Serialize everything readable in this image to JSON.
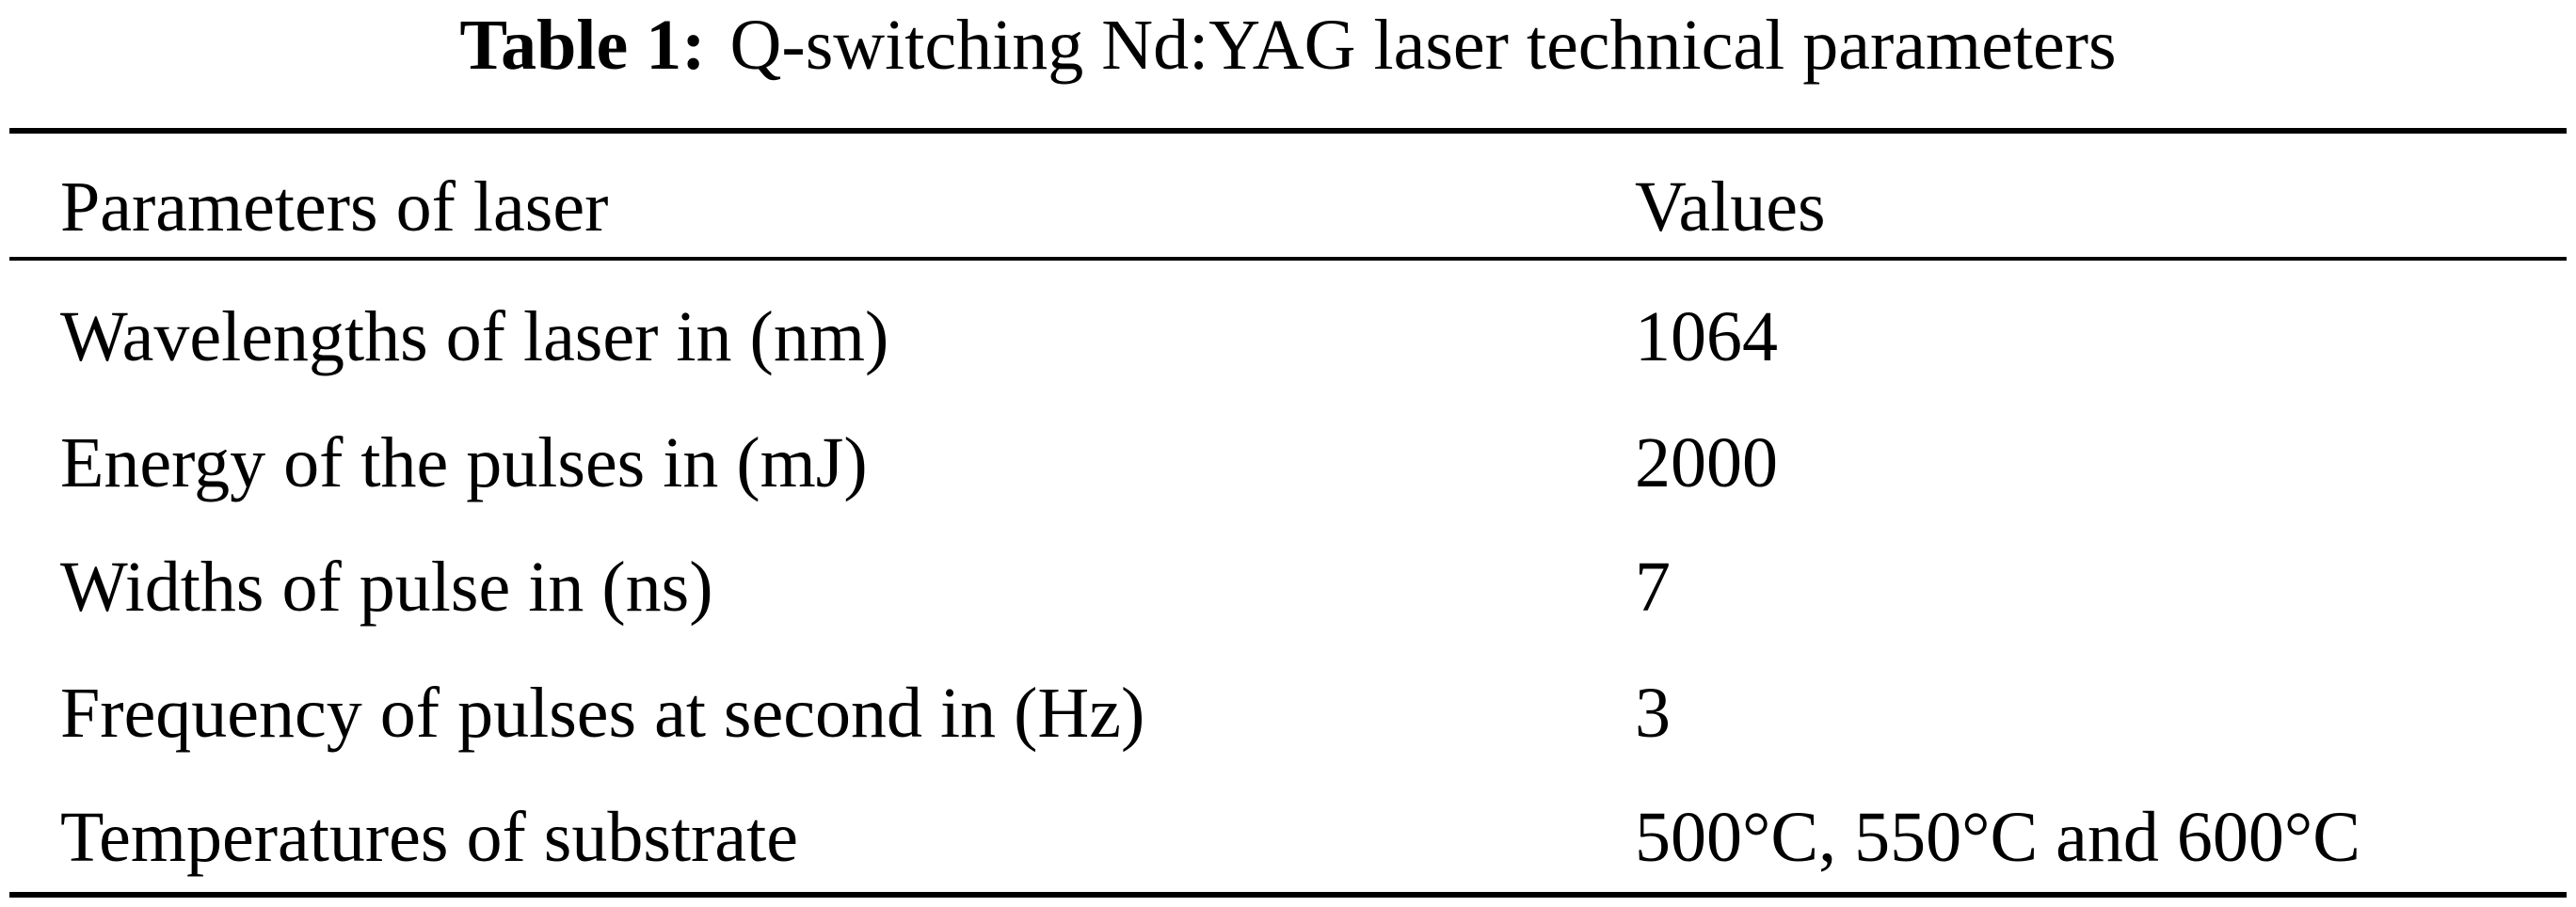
{
  "table": {
    "caption_label": "Table 1:",
    "caption_text": "Q-switching Nd:YAG laser technical parameters",
    "headers": [
      "Parameters of laser",
      "Values"
    ],
    "rows": [
      [
        "Wavelengths of laser in (nm)",
        "1064"
      ],
      [
        "Energy of the pulses in (mJ)",
        "2000"
      ],
      [
        "Widths of pulse in (ns)",
        "7"
      ],
      [
        "Frequency of pulses at second in (Hz)",
        "3"
      ],
      [
        "Temperatures of substrate",
        "500°C, 550°C and 600°C"
      ]
    ]
  }
}
